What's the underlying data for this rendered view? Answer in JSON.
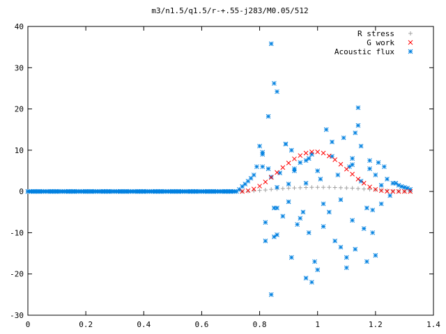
{
  "chart_data": {
    "type": "scatter",
    "title": "m3/n1.5/q1.5/r-+.55-j283/M0.05/512",
    "xlabel": "",
    "ylabel": "",
    "xlim": [
      0,
      1.4
    ],
    "ylim": [
      -30,
      40
    ],
    "x_ticks": [
      "0",
      "0.2",
      "0.4",
      "0.6",
      "0.8",
      "1",
      "1.2",
      "1.4"
    ],
    "y_ticks": [
      "40",
      "30",
      "20",
      "10",
      "0",
      "-10",
      "-20",
      "-30"
    ],
    "grid": false,
    "legend_position": "top-right",
    "series": [
      {
        "name": "R stress",
        "marker": "plus",
        "color": "#a0a0a0",
        "x": [
          0.74,
          0.76,
          0.78,
          0.8,
          0.82,
          0.84,
          0.86,
          0.88,
          0.9,
          0.92,
          0.94,
          0.96,
          0.98,
          1.0,
          1.02,
          1.04,
          1.06,
          1.08,
          1.1,
          1.12,
          1.14,
          1.16,
          1.18,
          1.2,
          1.22,
          1.24,
          1.26,
          1.28,
          1.3,
          1.32
        ],
        "y": [
          0.0,
          0.05,
          0.15,
          0.25,
          0.35,
          0.5,
          0.6,
          0.7,
          0.8,
          0.85,
          0.9,
          0.95,
          1.0,
          1.0,
          1.0,
          1.0,
          0.95,
          0.9,
          0.85,
          0.8,
          0.7,
          0.6,
          0.5,
          0.4,
          0.3,
          0.2,
          0.1,
          0.05,
          0.0,
          0.0
        ]
      },
      {
        "name": "G work",
        "marker": "cross",
        "color": "#ff0000",
        "x": [
          0.74,
          0.76,
          0.78,
          0.8,
          0.82,
          0.84,
          0.86,
          0.88,
          0.9,
          0.92,
          0.94,
          0.96,
          0.98,
          1.0,
          1.02,
          1.04,
          1.06,
          1.08,
          1.1,
          1.12,
          1.14,
          1.16,
          1.18,
          1.2,
          1.22,
          1.24,
          1.26,
          1.28,
          1.3,
          1.32
        ],
        "y": [
          0.0,
          0.2,
          0.6,
          1.3,
          2.3,
          3.4,
          4.6,
          5.8,
          6.9,
          7.9,
          8.7,
          9.3,
          9.6,
          9.6,
          9.3,
          8.6,
          7.7,
          6.6,
          5.4,
          4.2,
          3.0,
          2.0,
          1.1,
          0.5,
          0.2,
          0.05,
          0.0,
          0.0,
          0.0,
          0.0
        ]
      },
      {
        "name": "Acoustic flux",
        "marker": "star",
        "color": "#0080e0",
        "x": [
          0.0,
          0.02,
          0.04,
          0.06,
          0.08,
          0.1,
          0.12,
          0.14,
          0.16,
          0.18,
          0.2,
          0.22,
          0.24,
          0.26,
          0.28,
          0.3,
          0.32,
          0.34,
          0.36,
          0.38,
          0.4,
          0.42,
          0.44,
          0.46,
          0.48,
          0.5,
          0.52,
          0.54,
          0.56,
          0.58,
          0.6,
          0.62,
          0.64,
          0.66,
          0.68,
          0.7,
          0.72,
          0.73,
          0.74,
          0.75,
          0.76,
          0.77,
          0.78,
          0.79,
          0.8,
          0.81,
          0.82,
          0.83,
          0.84,
          0.85,
          0.86,
          0.87,
          0.88,
          0.89,
          0.9,
          0.91,
          0.92,
          0.93,
          0.94,
          0.95,
          0.96,
          0.97,
          0.98,
          0.99,
          1.0,
          1.01,
          1.02,
          1.03,
          1.04,
          1.05,
          1.06,
          1.07,
          1.08,
          1.09,
          1.1,
          1.11,
          1.12,
          1.13,
          1.14,
          1.15,
          1.16,
          1.17,
          1.18,
          1.19,
          1.2,
          1.21,
          1.22,
          1.23,
          1.24,
          1.25,
          1.26,
          1.27,
          1.28,
          1.29,
          1.3,
          1.31,
          1.32,
          0.84,
          0.85,
          0.86,
          0.83,
          0.84,
          0.81,
          0.86,
          0.89,
          0.9,
          0.91,
          0.96,
          0.97,
          0.98,
          1.14,
          1.15,
          1.13,
          1.08,
          1.12,
          1.17,
          1.18,
          1.19,
          0.82,
          0.81,
          0.85,
          0.86,
          0.92,
          0.94,
          0.96,
          1.0,
          1.02,
          1.05,
          1.1,
          1.12,
          1.2,
          1.22
        ],
        "y": [
          0,
          0,
          0,
          0,
          0,
          0,
          0,
          0,
          0,
          0,
          0,
          0,
          0,
          0,
          0,
          0,
          0,
          0,
          0,
          0,
          0,
          0,
          0,
          0,
          0,
          0,
          0,
          0,
          0,
          0,
          0,
          0,
          0,
          0,
          0,
          0,
          0,
          0.5,
          1.2,
          1.8,
          2.5,
          3.2,
          4.0,
          6.0,
          11.0,
          9.0,
          -7.5,
          5.5,
          3.5,
          -4.0,
          1.0,
          4.5,
          -6.0,
          11.5,
          -2.5,
          10.0,
          5.0,
          -8.0,
          7.0,
          -5.0,
          2.0,
          -10.0,
          9.0,
          -17.0,
          5.0,
          3.0,
          -8.5,
          15.0,
          -5.0,
          12.0,
          -12.0,
          4.0,
          -2.0,
          13.0,
          -18.5,
          6.0,
          8.0,
          -14.0,
          16.0,
          2.5,
          -9.0,
          -4.0,
          5.5,
          -10.0,
          4.0,
          7.0,
          -3.0,
          6.0,
          3.0,
          -1.0,
          2.0,
          2.0,
          1.5,
          1.2,
          1.0,
          0.8,
          0.5,
          35.8,
          26.2,
          24.2,
          18.2,
          -25.0,
          9.5,
          -10.5,
          11.5,
          1.8,
          -16.0,
          -21.0,
          8.0,
          -22.0,
          20.3,
          11.0,
          14.2,
          -13.5,
          6.5,
          -17.0,
          7.5,
          -4.5,
          -12.0,
          6.0,
          -11.0,
          -4.0,
          5.5,
          -6.5,
          7.5,
          -19.0,
          -3.0,
          8.5,
          -16.0,
          -7.0,
          -15.5,
          1.5
        ]
      }
    ]
  }
}
